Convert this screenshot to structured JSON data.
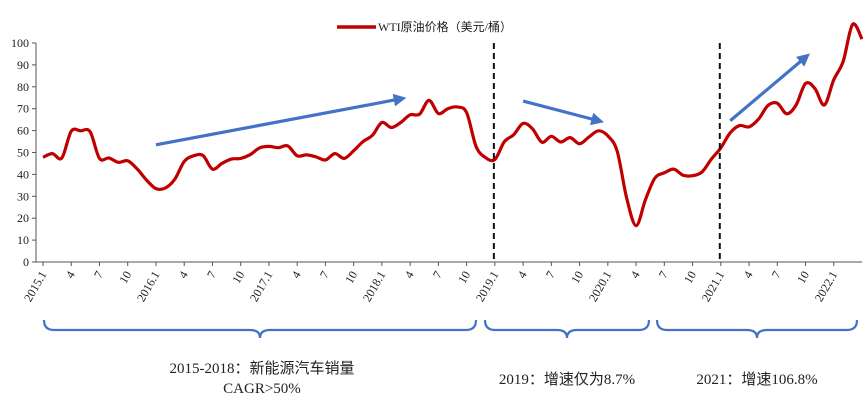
{
  "chart_data": {
    "type": "line",
    "legend": {
      "label": "WTI原油价格（美元/桶）",
      "position": "top-center",
      "color": "#C00000"
    },
    "y_ticks": [
      "0",
      "10",
      "20",
      "30",
      "40",
      "50",
      "60",
      "70",
      "80",
      "90",
      "100"
    ],
    "ylim": [
      0,
      100
    ],
    "x_tick_labels": [
      "2015.1",
      "4",
      "7",
      "10",
      "2016.1",
      "4",
      "7",
      "10",
      "2017.1",
      "4",
      "7",
      "10",
      "2018.1",
      "4",
      "7",
      "10",
      "2019.1",
      "4",
      "7",
      "10",
      "2020.1",
      "4",
      "7",
      "10",
      "2021.1",
      "4",
      "7",
      "10",
      "2022.1"
    ],
    "x_start": "2015-01",
    "x_end": "2022-04",
    "series": [
      {
        "name": "WTI原油价格（美元/桶）",
        "color": "#C00000",
        "values": [
          47.8,
          49.5,
          47.5,
          59.7,
          59.9,
          59.5,
          47.3,
          47.5,
          45.5,
          46.2,
          42.5,
          37.4,
          33.5,
          33.8,
          37.8,
          45.9,
          48.5,
          48.6,
          42.4,
          45,
          47,
          47.3,
          49,
          52.1,
          52.8,
          52.2,
          53,
          48.5,
          48.9,
          48,
          46.6,
          49.5,
          47.3,
          50.8,
          55,
          57.9,
          63.7,
          61.4,
          63.7,
          67.2,
          67.5,
          73.8,
          67.8,
          70,
          70.8,
          68.2,
          52.8,
          47.7,
          46.8,
          54.9,
          58.1,
          63.3,
          60.8,
          54.7,
          57.4,
          54.8,
          56.8,
          54,
          57.1,
          59.9,
          57.6,
          50.5,
          29.2,
          16.6,
          28.5,
          38.3,
          40.7,
          42.4,
          39.6,
          39.4,
          41.1,
          47,
          52.1,
          59,
          62.3,
          61.7,
          65.2,
          71.4,
          72.5,
          67.7,
          71.7,
          81.5,
          79.2,
          71.7,
          83.2,
          91.6,
          108.5,
          101.8
        ]
      }
    ],
    "dividers": [
      "2019.1",
      "2021.1"
    ],
    "arrows": [
      {
        "from": [
          "2016-01",
          53.5
        ],
        "to": [
          "2018-03",
          74.5
        ],
        "color": "#4472C4"
      },
      {
        "from": [
          "2019-04",
          73.5
        ],
        "to": [
          "2019-12",
          64.5
        ],
        "color": "#4472C4"
      },
      {
        "from": [
          "2021-02",
          64.5
        ],
        "to": [
          "2021-10",
          93.5
        ],
        "color": "#4472C4"
      }
    ],
    "braces": [
      {
        "label_lines": [
          "2015-2018：新能源汽车销量",
          "CAGR>50%"
        ]
      },
      {
        "label_lines": [
          "2019：增速仅为8.7%"
        ]
      },
      {
        "label_lines": [
          "2021：增速106.8%"
        ]
      }
    ]
  }
}
